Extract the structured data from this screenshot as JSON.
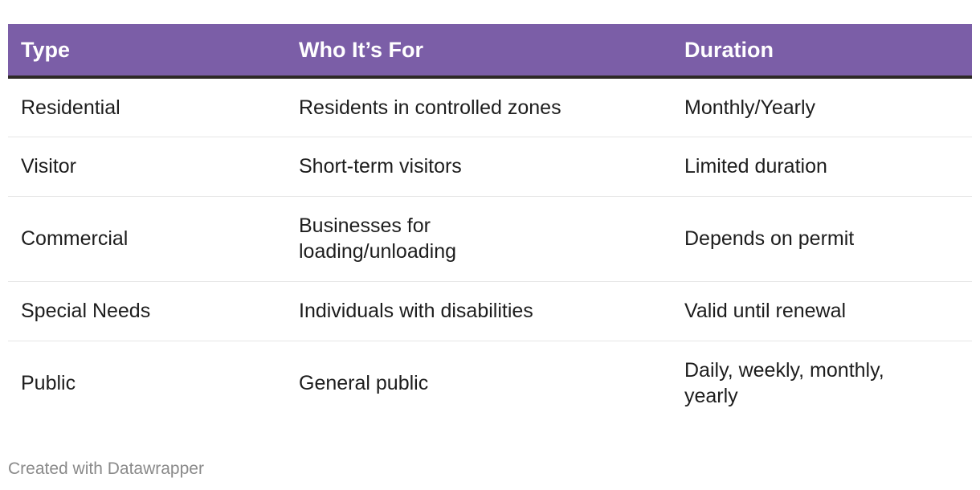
{
  "chart_data": {
    "type": "table",
    "columns": [
      "Type",
      "Who It’s For",
      "Duration"
    ],
    "rows": [
      [
        "Residential",
        "Residents in controlled zones",
        "Monthly/Yearly"
      ],
      [
        "Visitor",
        "Short-term visitors",
        "Limited duration"
      ],
      [
        "Commercial",
        "Businesses for loading/unloading",
        "Depends on permit"
      ],
      [
        "Special Needs",
        "Individuals with disabilities",
        "Valid until renewal"
      ],
      [
        "Public",
        "General public",
        "Daily, weekly, monthly, yearly"
      ]
    ],
    "header_color": "#7b5ea7",
    "header_text_color": "#ffffff",
    "divider_color": "#2d2926"
  },
  "footer": {
    "credit": "Created with Datawrapper"
  }
}
